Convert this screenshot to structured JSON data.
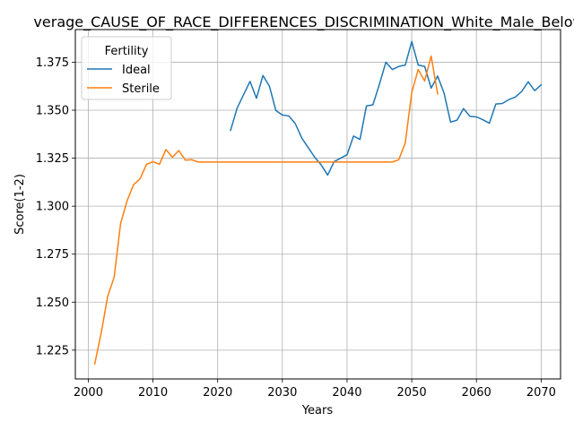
{
  "chart_data": {
    "type": "line",
    "title": "verage_CAUSE_OF_RACE_DIFFERENCES_DISCRIMINATION_White_Male_Below_A",
    "xlabel": "Years",
    "ylabel": "Score(1-2)",
    "xlim": [
      1998,
      2073
    ],
    "ylim": [
      1.21,
      1.392
    ],
    "xticks": [
      2000,
      2010,
      2020,
      2030,
      2040,
      2050,
      2060,
      2070
    ],
    "yticks": [
      1.225,
      1.25,
      1.275,
      1.3,
      1.325,
      1.35,
      1.375
    ],
    "xtick_labels": [
      "2000",
      "2010",
      "2020",
      "2030",
      "2040",
      "2050",
      "2060",
      "2070"
    ],
    "ytick_labels": [
      "1.225",
      "1.250",
      "1.275",
      "1.300",
      "1.325",
      "1.350",
      "1.375"
    ],
    "grid": true,
    "legend": {
      "title": "Fertility",
      "placement": "upper-left"
    },
    "series": [
      {
        "name": "Ideal",
        "color": "#1f77b4",
        "x": [
          2022,
          2023,
          2024,
          2025,
          2026,
          2027,
          2028,
          2029,
          2030,
          2031,
          2032,
          2033,
          2034,
          2035,
          2036,
          2037,
          2038,
          2039,
          2040,
          2041,
          2042,
          2043,
          2044,
          2045,
          2046,
          2047,
          2048,
          2049,
          2050,
          2051,
          2052,
          2053,
          2054,
          2055,
          2056,
          2057,
          2058,
          2059,
          2060,
          2061,
          2062,
          2063,
          2064,
          2065,
          2066,
          2067,
          2068,
          2069,
          2070
        ],
        "y": [
          1.3395,
          1.351,
          1.358,
          1.365,
          1.3562,
          1.3681,
          1.3625,
          1.3498,
          1.3475,
          1.347,
          1.343,
          1.3355,
          1.3305,
          1.3255,
          1.3215,
          1.3162,
          1.3232,
          1.325,
          1.3268,
          1.3365,
          1.3348,
          1.3522,
          1.3528,
          1.3635,
          1.375,
          1.3712,
          1.3728,
          1.3735,
          1.3858,
          1.3735,
          1.3728,
          1.3615,
          1.3678,
          1.3588,
          1.3438,
          1.3448,
          1.3508,
          1.3468,
          1.3465,
          1.345,
          1.3432,
          1.3532,
          1.3535,
          1.3555,
          1.3568,
          1.3598,
          1.3648,
          1.3602,
          1.3632
        ]
      },
      {
        "name": "Sterile",
        "color": "#ff7f0e",
        "x": [
          2001,
          2002,
          2003,
          2004,
          2005,
          2006,
          2007,
          2008,
          2009,
          2010,
          2011,
          2012,
          2013,
          2014,
          2015,
          2016,
          2017,
          2018,
          2019,
          2020,
          2021,
          2022,
          2023,
          2024,
          2025,
          2026,
          2027,
          2028,
          2029,
          2030,
          2031,
          2032,
          2033,
          2034,
          2035,
          2036,
          2037,
          2038,
          2039,
          2040,
          2041,
          2042,
          2043,
          2044,
          2045,
          2046,
          2047,
          2048,
          2049,
          2050,
          2051,
          2052,
          2053,
          2054
        ],
        "y": [
          1.2178,
          1.234,
          1.253,
          1.263,
          1.291,
          1.3028,
          1.3112,
          1.3142,
          1.3218,
          1.3232,
          1.3218,
          1.3295,
          1.3255,
          1.329,
          1.324,
          1.3242,
          1.323,
          1.323,
          1.323,
          1.323,
          1.323,
          1.323,
          1.323,
          1.323,
          1.323,
          1.323,
          1.323,
          1.323,
          1.323,
          1.323,
          1.323,
          1.323,
          1.323,
          1.323,
          1.323,
          1.323,
          1.323,
          1.323,
          1.323,
          1.323,
          1.323,
          1.323,
          1.323,
          1.323,
          1.323,
          1.323,
          1.323,
          1.3242,
          1.333,
          1.3592,
          1.3712,
          1.3652,
          1.3782,
          1.3585
        ]
      }
    ]
  }
}
